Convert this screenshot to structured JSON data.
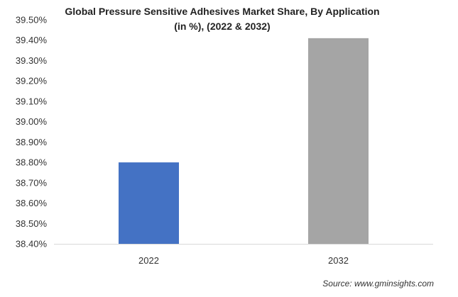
{
  "chart_data": {
    "type": "bar",
    "title_lines": [
      "Global Pressure Sensitive Adhesives Market Share, By Application",
      "(in %), (2022 & 2032)"
    ],
    "categories": [
      "2022",
      "2032"
    ],
    "values": [
      38.8,
      39.41
    ],
    "colors": [
      "#4472C4",
      "#A5A5A5"
    ],
    "ylim": [
      38.4,
      39.5
    ],
    "yticks": [
      "38.40%",
      "38.50%",
      "38.60%",
      "38.70%",
      "38.80%",
      "38.90%",
      "39.00%",
      "39.10%",
      "39.20%",
      "39.30%",
      "39.40%",
      "39.50%"
    ],
    "xlabel": "",
    "ylabel": "",
    "grid": false,
    "legend": "none"
  },
  "source": "Source: www.gminsights.com"
}
